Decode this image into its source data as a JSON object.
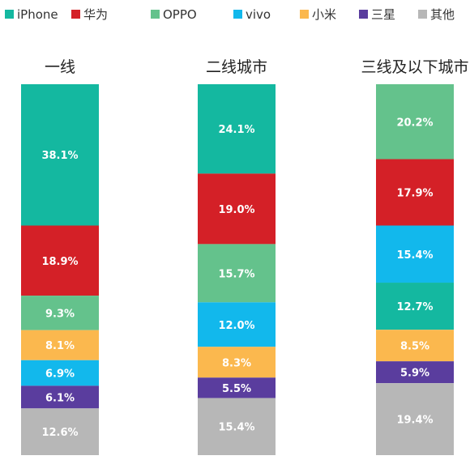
{
  "chart_data": {
    "type": "bar",
    "stacked": true,
    "orientation": "vertical",
    "categories": [
      "一线",
      "二线城市",
      "三线及以下城市"
    ],
    "series": [
      {
        "name": "iPhone",
        "color": "#14b8a0",
        "values": [
          38.1,
          24.1,
          12.7
        ],
        "labels": [
          "38.1%",
          "24.1%",
          "12.7%"
        ]
      },
      {
        "name": "华为",
        "color": "#d42027",
        "values": [
          18.9,
          19.0,
          17.9
        ],
        "labels": [
          "18.9%",
          "19.0%",
          "17.9%"
        ]
      },
      {
        "name": "OPPO",
        "color": "#64c28c",
        "values": [
          9.3,
          15.7,
          20.2
        ],
        "labels": [
          "9.3%",
          "15.7%",
          "20.2%"
        ]
      },
      {
        "name": "vivo",
        "color": "#12b8ec",
        "values": [
          6.9,
          12.0,
          15.4
        ],
        "labels": [
          "6.9%",
          "12.0%",
          "15.4%"
        ]
      },
      {
        "name": "小米",
        "color": "#fbb84e",
        "values": [
          8.1,
          8.3,
          8.5
        ],
        "labels": [
          "8.1%",
          "8.3%",
          "8.5%"
        ]
      },
      {
        "name": "三星",
        "color": "#5a3d9e",
        "values": [
          6.1,
          5.5,
          5.9
        ],
        "labels": [
          "6.1%",
          "5.5%",
          "5.9%"
        ]
      },
      {
        "name": "其他",
        "color": "#b7b7b7",
        "values": [
          12.6,
          15.4,
          19.4
        ],
        "labels": [
          "12.6%",
          "15.4%",
          "19.4%"
        ]
      }
    ],
    "stack_order_top_to_bottom": [
      [
        "iPhone",
        "华为",
        "OPPO",
        "小米",
        "vivo",
        "三星",
        "其他"
      ],
      [
        "iPhone",
        "华为",
        "OPPO",
        "vivo",
        "小米",
        "三星",
        "其他"
      ],
      [
        "OPPO",
        "华为",
        "vivo",
        "iPhone",
        "小米",
        "三星",
        "其他"
      ]
    ],
    "unit": "%",
    "legend_position": "top",
    "grid": false,
    "title": "",
    "xlabel": "",
    "ylabel": ""
  }
}
